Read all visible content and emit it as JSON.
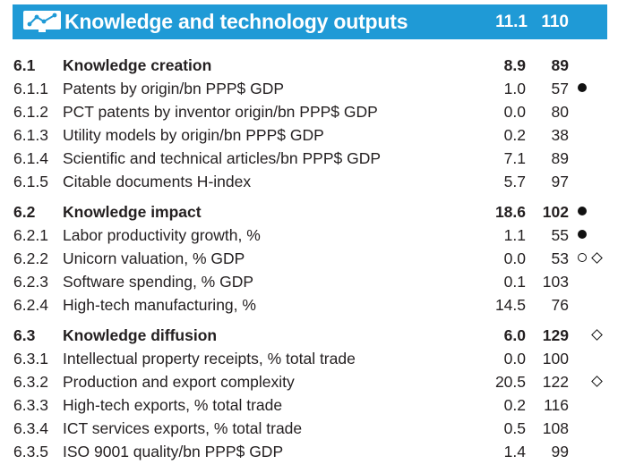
{
  "header": {
    "icon": "computer-network-icon",
    "title": "Knowledge and technology outputs",
    "score": "11.1",
    "rank": "110",
    "background_color": "#1f9ad6"
  },
  "sections": [
    {
      "pillar": {
        "code": "6.1",
        "label": "Knowledge creation",
        "score": "8.9",
        "rank": "89",
        "marks": []
      },
      "indicators": [
        {
          "code": "6.1.1",
          "label": "Patents by origin/bn PPP$ GDP",
          "score": "1.0",
          "rank": "57",
          "marks": [
            "strength-filled-circle"
          ]
        },
        {
          "code": "6.1.2",
          "label": "PCT patents by inventor origin/bn PPP$ GDP",
          "score": "0.0",
          "rank": "80",
          "marks": []
        },
        {
          "code": "6.1.3",
          "label": "Utility models by origin/bn PPP$ GDP",
          "score": "0.2",
          "rank": "38",
          "marks": []
        },
        {
          "code": "6.1.4",
          "label": "Scientific and technical articles/bn PPP$ GDP",
          "score": "7.1",
          "rank": "89",
          "marks": []
        },
        {
          "code": "6.1.5",
          "label": "Citable documents H-index",
          "score": "5.7",
          "rank": "97",
          "marks": []
        }
      ]
    },
    {
      "pillar": {
        "code": "6.2",
        "label": "Knowledge impact",
        "score": "18.6",
        "rank": "102",
        "marks": [
          "strength-filled-circle"
        ]
      },
      "indicators": [
        {
          "code": "6.2.1",
          "label": "Labor productivity growth, %",
          "score": "1.1",
          "rank": "55",
          "marks": [
            "strength-filled-circle"
          ]
        },
        {
          "code": "6.2.2",
          "label": "Unicorn valuation, % GDP",
          "score": "0.0",
          "rank": "53",
          "marks": [
            "empty-circle",
            "diamond"
          ]
        },
        {
          "code": "6.2.3",
          "label": "Software spending, % GDP",
          "score": "0.1",
          "rank": "103",
          "marks": []
        },
        {
          "code": "6.2.4",
          "label": "High-tech manufacturing, %",
          "score": "14.5",
          "rank": "76",
          "marks": []
        }
      ]
    },
    {
      "pillar": {
        "code": "6.3",
        "label": "Knowledge diffusion",
        "score": "6.0",
        "rank": "129",
        "marks": [
          "diamond"
        ]
      },
      "indicators": [
        {
          "code": "6.3.1",
          "label": "Intellectual property receipts, % total trade",
          "score": "0.0",
          "rank": "100",
          "marks": []
        },
        {
          "code": "6.3.2",
          "label": "Production and export complexity",
          "score": "20.5",
          "rank": "122",
          "marks": [
            "diamond"
          ]
        },
        {
          "code": "6.3.3",
          "label": "High-tech exports, % total trade",
          "score": "0.2",
          "rank": "116",
          "marks": []
        },
        {
          "code": "6.3.4",
          "label": "ICT services exports, % total trade",
          "score": "0.5",
          "rank": "108",
          "marks": []
        },
        {
          "code": "6.3.5",
          "label": "ISO 9001 quality/bn PPP$ GDP",
          "score": "1.4",
          "rank": "99",
          "marks": []
        }
      ]
    }
  ]
}
